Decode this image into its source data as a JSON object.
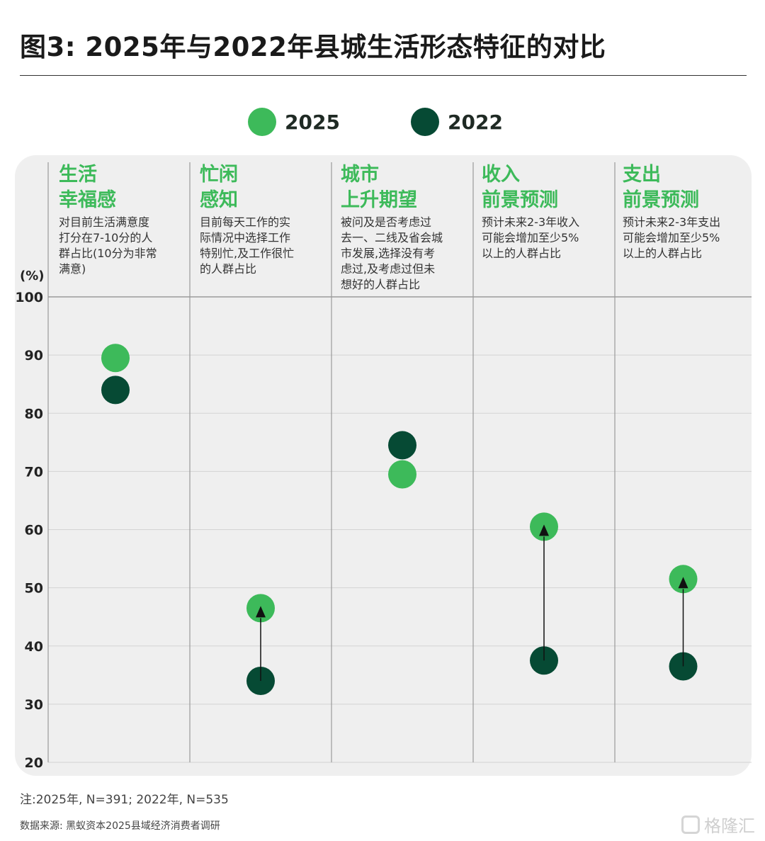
{
  "title": "图3: 2025年与2022年县城生活形态特征的对比",
  "legend": [
    {
      "label": "2025",
      "color": "#3dba5a"
    },
    {
      "label": "2022",
      "color": "#064a34"
    }
  ],
  "unit_label": "(%)",
  "columns": [
    {
      "title": "生活\n幸福感",
      "desc": "对目前生活满意度\n打分在7-10分的人\n群占比(10分为非常\n满意)"
    },
    {
      "title": "忙闲\n感知",
      "desc": "目前每天工作的实\n际情况中选择工作\n特别忙,及工作很忙\n的人群占比"
    },
    {
      "title": "城市\n上升期望",
      "desc": "被问及是否考虑过\n去一、二线及省会城\n市发展,选择没有考\n虑过,及考虑过但未\n想好的人群占比"
    },
    {
      "title": "收入\n前景预测",
      "desc": "预计未来2-3年收入\n可能会增加至少5%\n以上的人群占比"
    },
    {
      "title": "支出\n前景预测",
      "desc": "预计未来2-3年支出\n可能会增加至少5%\n以上的人群占比"
    }
  ],
  "chart_data": {
    "type": "scatter",
    "categories": [
      "生活幸福感",
      "忙闲感知",
      "城市上升期望",
      "收入前景预测",
      "支出前景预测"
    ],
    "series": [
      {
        "name": "2025",
        "values": [
          89.5,
          46.5,
          69.5,
          60.5,
          51.5
        ],
        "color": "#3dba5a"
      },
      {
        "name": "2022",
        "values": [
          84.0,
          34.0,
          74.5,
          37.5,
          36.5
        ],
        "color": "#064a34"
      }
    ],
    "arrows": [
      false,
      true,
      false,
      true,
      true
    ],
    "ylim": [
      20,
      100
    ],
    "yticks": [
      20,
      30,
      40,
      50,
      60,
      70,
      80,
      90,
      100
    ],
    "grid": true
  },
  "note": "注:2025年, N=391; 2022年, N=535",
  "source": "数据来源: 黑蚁资本2025县域经济消费者调研",
  "watermark": "格隆汇"
}
